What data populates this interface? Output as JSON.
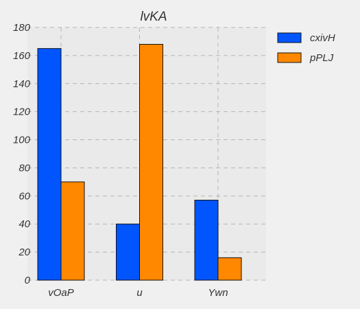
{
  "chart_data": {
    "type": "bar",
    "title": "lvKA",
    "xlabel": "",
    "ylabel": "",
    "categories": [
      "vOaP",
      "u",
      "Ywn"
    ],
    "series": [
      {
        "name": "cxivH",
        "values": [
          165,
          40,
          57
        ],
        "color": "#0055ff"
      },
      {
        "name": "pPLJ",
        "values": [
          70,
          168,
          16
        ],
        "color": "#ff8800"
      }
    ],
    "ylim": [
      0,
      180
    ],
    "yticks": [
      0,
      20,
      40,
      60,
      80,
      100,
      120,
      140,
      160,
      180
    ],
    "grid": true,
    "legend_position": "top-right"
  }
}
